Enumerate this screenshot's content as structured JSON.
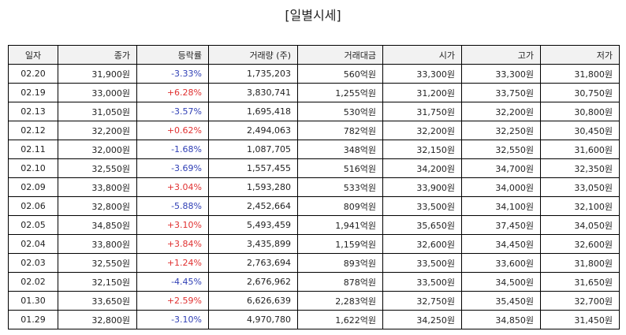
{
  "title": "[일별시세]",
  "columns": [
    "일자",
    "종가",
    "등락률",
    "거래량 (주)",
    "거래대금",
    "시가",
    "고가",
    "저가"
  ],
  "rows": [
    {
      "date": "02.20",
      "close": "31,900원",
      "change": "-3.33%",
      "dir": "down",
      "volume": "1,735,203",
      "amount": "560억원",
      "open": "33,300원",
      "high": "33,300원",
      "low": "31,800원"
    },
    {
      "date": "02.19",
      "close": "33,000원",
      "change": "+6.28%",
      "dir": "up",
      "volume": "3,830,741",
      "amount": "1,255억원",
      "open": "31,200원",
      "high": "33,750원",
      "low": "30,750원"
    },
    {
      "date": "02.13",
      "close": "31,050원",
      "change": "-3.57%",
      "dir": "down",
      "volume": "1,695,418",
      "amount": "530억원",
      "open": "31,750원",
      "high": "32,200원",
      "low": "30,800원"
    },
    {
      "date": "02.12",
      "close": "32,200원",
      "change": "+0.62%",
      "dir": "up",
      "volume": "2,494,063",
      "amount": "782억원",
      "open": "32,200원",
      "high": "32,250원",
      "low": "30,450원"
    },
    {
      "date": "02.11",
      "close": "32,000원",
      "change": "-1.68%",
      "dir": "down",
      "volume": "1,087,705",
      "amount": "348억원",
      "open": "32,150원",
      "high": "32,550원",
      "low": "31,600원"
    },
    {
      "date": "02.10",
      "close": "32,550원",
      "change": "-3.69%",
      "dir": "down",
      "volume": "1,557,455",
      "amount": "516억원",
      "open": "34,200원",
      "high": "34,700원",
      "low": "32,350원"
    },
    {
      "date": "02.09",
      "close": "33,800원",
      "change": "+3.04%",
      "dir": "up",
      "volume": "1,593,280",
      "amount": "533억원",
      "open": "33,900원",
      "high": "34,000원",
      "low": "33,050원"
    },
    {
      "date": "02.06",
      "close": "32,800원",
      "change": "-5.88%",
      "dir": "down",
      "volume": "2,452,664",
      "amount": "809억원",
      "open": "33,500원",
      "high": "34,100원",
      "low": "32,100원"
    },
    {
      "date": "02.05",
      "close": "34,850원",
      "change": "+3.10%",
      "dir": "up",
      "volume": "5,493,459",
      "amount": "1,941억원",
      "open": "35,650원",
      "high": "37,450원",
      "low": "34,050원"
    },
    {
      "date": "02.04",
      "close": "33,800원",
      "change": "+3.84%",
      "dir": "up",
      "volume": "3,435,899",
      "amount": "1,159억원",
      "open": "32,600원",
      "high": "34,450원",
      "low": "32,600원"
    },
    {
      "date": "02.03",
      "close": "32,550원",
      "change": "+1.24%",
      "dir": "up",
      "volume": "2,763,694",
      "amount": "893억원",
      "open": "33,500원",
      "high": "33,600원",
      "low": "31,800원"
    },
    {
      "date": "02.02",
      "close": "32,150원",
      "change": "-4.45%",
      "dir": "down",
      "volume": "2,676,962",
      "amount": "878억원",
      "open": "33,500원",
      "high": "34,500원",
      "low": "31,650원"
    },
    {
      "date": "01.30",
      "close": "33,650원",
      "change": "+2.59%",
      "dir": "up",
      "volume": "6,626,639",
      "amount": "2,283억원",
      "open": "32,750원",
      "high": "35,450원",
      "low": "32,700원"
    },
    {
      "date": "01.29",
      "close": "32,800원",
      "change": "-3.10%",
      "dir": "down",
      "volume": "4,970,780",
      "amount": "1,622억원",
      "open": "34,250원",
      "high": "34,850원",
      "low": "31,450원"
    }
  ],
  "colors": {
    "up": "#e03131",
    "down": "#2f3fb5",
    "header_bg": "#f2f2f2",
    "border": "#000000"
  }
}
